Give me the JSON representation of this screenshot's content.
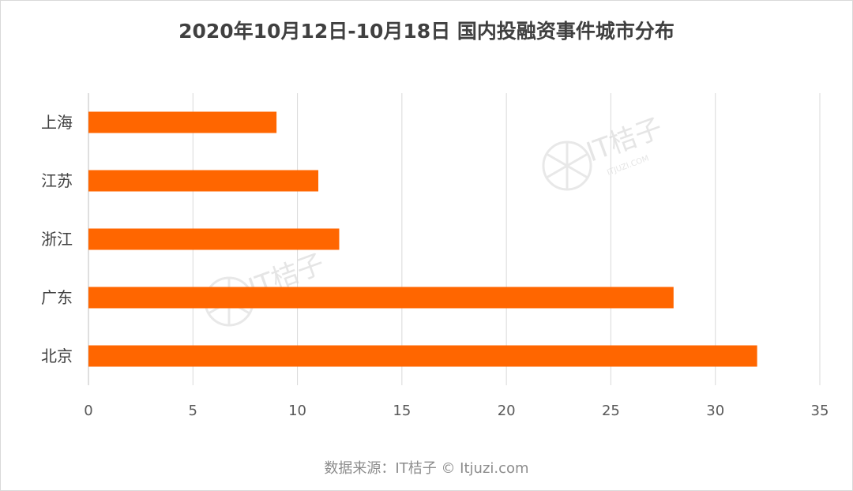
{
  "title": "2020年10月12日-10月18日 国内投融资事件城市分布",
  "source": "数据来源：IT桔子 © Itjuzi.com",
  "colors": {
    "bar": "#ff6600",
    "grid": "#d9d9d9",
    "text": "#404040"
  },
  "watermark": {
    "brand": "IT桔子",
    "domain": "ITJUZI.COM"
  },
  "chart_data": {
    "type": "bar",
    "orientation": "horizontal",
    "categories": [
      "上海",
      "江苏",
      "浙江",
      "广东",
      "北京"
    ],
    "values": [
      9,
      11,
      12,
      28,
      32
    ],
    "xlim": [
      0,
      35
    ],
    "xticks": [
      0,
      5,
      10,
      15,
      20,
      25,
      30,
      35
    ],
    "grid": "vertical",
    "legend": "none",
    "title": "2020年10月12日-10月18日 国内投融资事件城市分布"
  }
}
